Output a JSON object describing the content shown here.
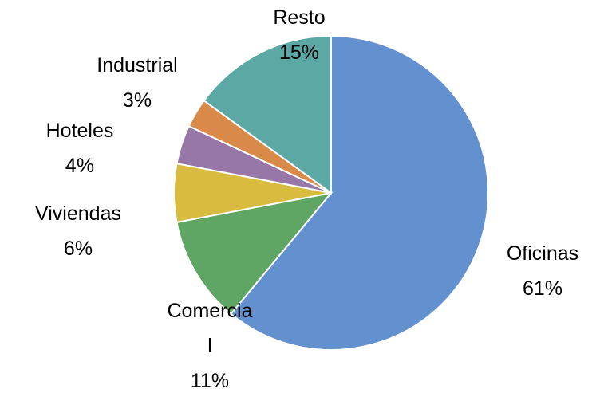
{
  "chart_data": {
    "type": "pie",
    "categories": [
      "Oficinas",
      "Comercial",
      "Viviendas",
      "Hoteles",
      "Industrial",
      "Resto"
    ],
    "values": [
      61,
      11,
      6,
      4,
      3,
      15
    ],
    "value_labels": [
      "61%",
      "11%",
      "6%",
      "4%",
      "3%",
      "15%"
    ],
    "colors": [
      "#6391cf",
      "#5fa563",
      "#d9bb3f",
      "#9677a8",
      "#d98a48",
      "#5ba8a4"
    ]
  }
}
